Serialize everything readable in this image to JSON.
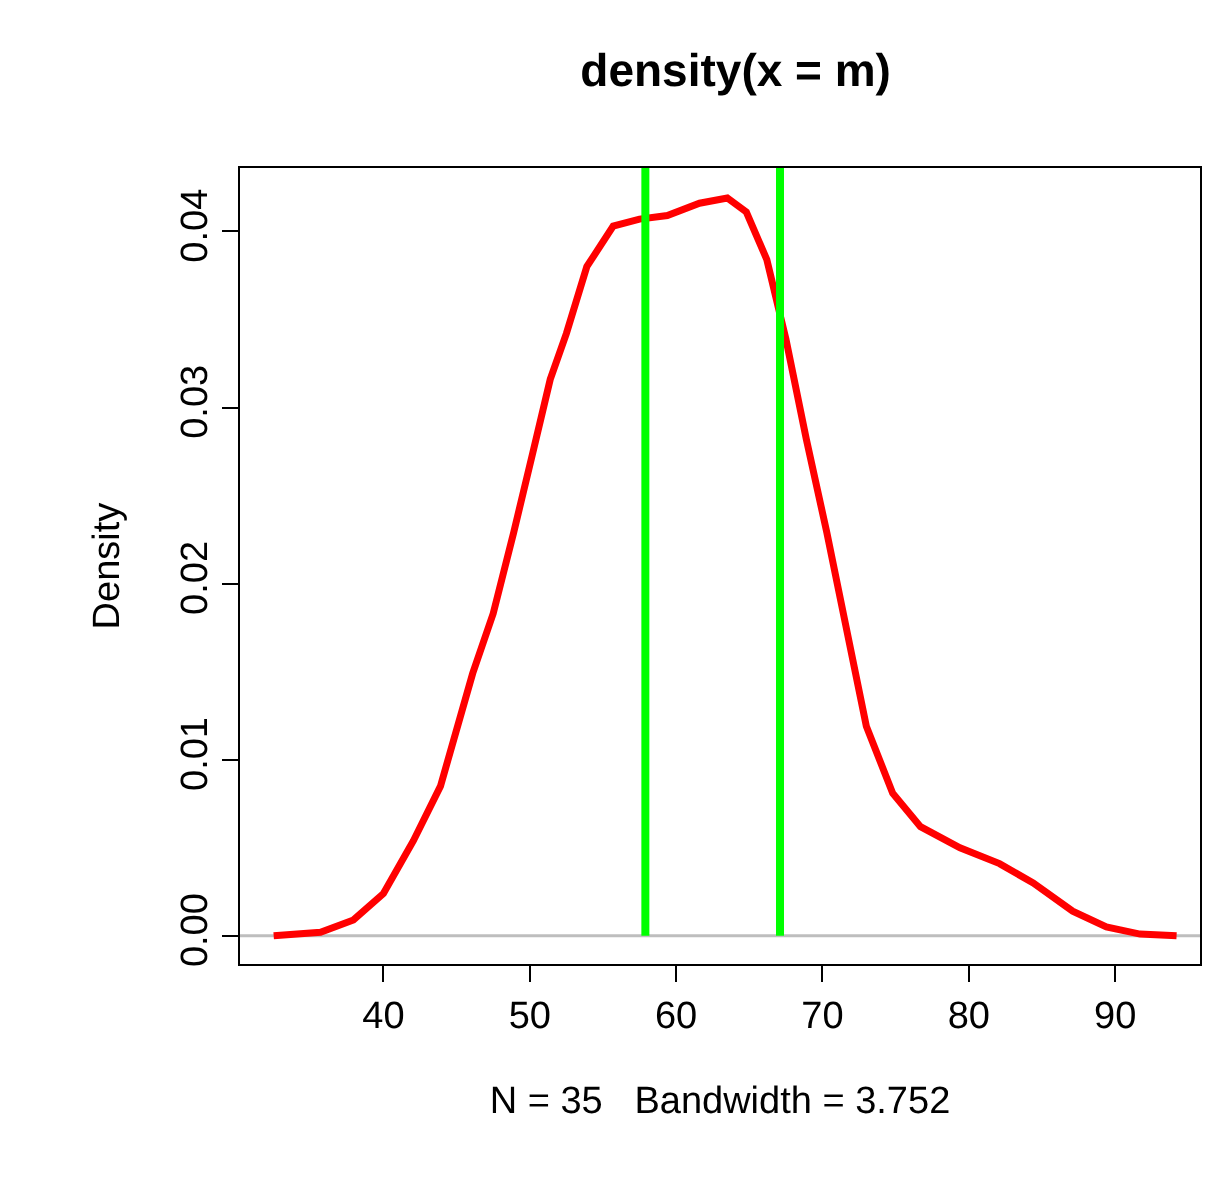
{
  "chart_data": {
    "type": "line",
    "title": "density(x = m)",
    "xlabel": "N = 35   Bandwidth = 3.752",
    "ylabel": "Density",
    "series": [
      {
        "color": "#ff0000",
        "x": [
          32.5,
          35.7,
          37.95,
          40,
          42.05,
          43.9,
          46.1,
          47.5,
          48.9,
          50.2,
          51.4,
          52.5,
          53.9,
          55.7,
          57.5,
          59.4,
          61.6,
          63.5,
          64.8,
          66.2,
          67.5,
          68.9,
          70.3,
          71.6,
          73.0,
          74.8,
          76.7,
          79.4,
          82.1,
          84.4,
          87.1,
          89.4,
          91.7,
          94.2
        ],
        "values": [
          0.0,
          0.0002,
          0.0009,
          0.0024,
          0.0054,
          0.0085,
          0.0149,
          0.0183,
          0.0229,
          0.0274,
          0.0316,
          0.0342,
          0.038,
          0.0403,
          0.0407,
          0.0409,
          0.0416,
          0.0419,
          0.0411,
          0.0384,
          0.0339,
          0.0282,
          0.0229,
          0.0176,
          0.0119,
          0.0081,
          0.0062,
          0.005,
          0.0041,
          0.003,
          0.0014,
          0.0005,
          0.0001,
          0.0
        ]
      }
    ],
    "xlim": [
      30.2,
      95.8
    ],
    "ylim": [
      -0.0016,
      0.0436
    ],
    "xticks": [
      40,
      50,
      60,
      70,
      80,
      90
    ],
    "yticks": [
      {
        "value": 0,
        "label": "0.00"
      },
      {
        "value": 0.01,
        "label": "0.01"
      },
      {
        "value": 0.02,
        "label": "0.02"
      },
      {
        "value": 0.03,
        "label": "0.03"
      },
      {
        "value": 0.04,
        "label": "0.04"
      }
    ],
    "ref_lines": [
      {
        "axis": "y",
        "value": 0,
        "color": "#bebebe"
      },
      {
        "axis": "x",
        "value": 57.9,
        "color": "#00ff00"
      },
      {
        "axis": "x",
        "value": 67.1,
        "color": "#00ff00"
      }
    ],
    "grid": false,
    "marker": "none",
    "line_style": "solid"
  }
}
